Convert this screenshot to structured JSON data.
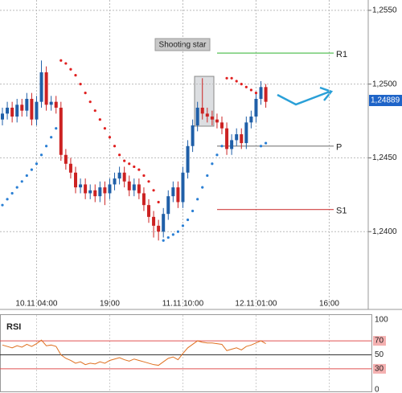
{
  "chart_data": [
    {
      "type": "candlestick",
      "categories": [
        null,
        null,
        null,
        null,
        null,
        null,
        null,
        "10.11 04:00",
        null,
        null,
        null,
        null,
        null,
        null,
        null,
        null,
        null,
        null,
        null,
        null,
        null,
        null,
        "19:00",
        null,
        null,
        null,
        null,
        null,
        null,
        null,
        null,
        null,
        null,
        null,
        null,
        null,
        null,
        "11.11 10:00",
        null,
        null,
        null,
        null,
        null,
        null,
        null,
        null,
        null,
        null,
        null,
        null,
        null,
        null,
        "12.11 01:00",
        null,
        null,
        null,
        null,
        null,
        null,
        null,
        null,
        null,
        null,
        null,
        null,
        null,
        null,
        "16:00",
        null,
        null,
        null,
        null,
        null,
        null,
        null,
        null
      ],
      "open": [
        1.2476,
        1.248,
        1.2484,
        1.2478,
        1.2486,
        1.2482,
        1.249,
        1.2476,
        1.2488,
        1.2508,
        1.2486,
        1.2488,
        1.2484,
        1.2452,
        1.2446,
        1.244,
        1.243,
        1.2432,
        1.2426,
        1.2428,
        1.2424,
        1.243,
        1.2426,
        1.2432,
        1.2436,
        1.244,
        1.2434,
        1.2428,
        1.2432,
        1.2426,
        1.2418,
        1.241,
        1.2404,
        1.24,
        1.2412,
        1.2424,
        1.243,
        1.242,
        1.244,
        1.2458,
        1.2472,
        1.2484,
        1.248,
        1.2478,
        1.2476,
        1.2474,
        1.247,
        1.2456,
        1.2462,
        1.2466,
        1.246,
        1.2474,
        1.2478,
        1.249,
        1.2498,
        null,
        null,
        null,
        null,
        null,
        null,
        null,
        null,
        null,
        null,
        null,
        null,
        null,
        null,
        null,
        null,
        null,
        null,
        null,
        null,
        null
      ],
      "high": [
        1.2484,
        1.2488,
        1.2488,
        1.249,
        1.249,
        1.2494,
        1.2494,
        1.2492,
        1.2516,
        1.2512,
        1.2492,
        1.2492,
        1.2488,
        1.2456,
        1.245,
        1.2444,
        1.2436,
        1.2436,
        1.2432,
        1.2432,
        1.2434,
        1.2434,
        1.2436,
        1.244,
        1.2444,
        1.2444,
        1.2438,
        1.2436,
        1.2436,
        1.243,
        1.2422,
        1.2414,
        1.2408,
        1.2416,
        1.2428,
        1.2434,
        1.2434,
        1.2444,
        1.2462,
        1.2476,
        1.2488,
        1.2504,
        1.2484,
        1.2482,
        1.248,
        1.2478,
        1.2474,
        1.2466,
        1.247,
        1.247,
        1.2478,
        1.2482,
        1.2494,
        1.2502,
        1.25,
        null,
        null,
        null,
        null,
        null,
        null,
        null,
        null,
        null,
        null,
        null,
        null,
        null,
        null,
        null,
        null,
        null,
        null,
        null,
        null,
        null
      ],
      "low": [
        1.2472,
        1.2476,
        1.2474,
        1.2474,
        1.2478,
        1.2478,
        1.2472,
        1.2472,
        1.2484,
        1.2482,
        1.2482,
        1.248,
        1.2448,
        1.2442,
        1.2436,
        1.2426,
        1.2426,
        1.2422,
        1.2422,
        1.242,
        1.242,
        1.2418,
        1.2422,
        1.2428,
        1.2432,
        1.243,
        1.2424,
        1.2424,
        1.2422,
        1.2414,
        1.2406,
        1.2396,
        1.2394,
        1.2396,
        1.2408,
        1.242,
        1.2416,
        1.2416,
        1.2436,
        1.2454,
        1.2468,
        1.2476,
        1.2474,
        1.2472,
        1.247,
        1.2466,
        1.2452,
        1.2452,
        1.2458,
        1.2456,
        1.2456,
        1.247,
        1.2474,
        1.2486,
        1.2484,
        null,
        null,
        null,
        null,
        null,
        null,
        null,
        null,
        null,
        null,
        null,
        null,
        null,
        null,
        null,
        null,
        null,
        null,
        null,
        null,
        null
      ],
      "close": [
        1.248,
        1.2484,
        1.2478,
        1.2486,
        1.2482,
        1.249,
        1.2476,
        1.2488,
        1.2508,
        1.2486,
        1.2488,
        1.2484,
        1.2452,
        1.2446,
        1.244,
        1.243,
        1.2432,
        1.2426,
        1.2428,
        1.2424,
        1.243,
        1.2426,
        1.2432,
        1.2436,
        1.244,
        1.2434,
        1.2428,
        1.2432,
        1.2426,
        1.2418,
        1.241,
        1.2404,
        1.24,
        1.2412,
        1.2424,
        1.243,
        1.242,
        1.244,
        1.2458,
        1.2472,
        1.2484,
        1.248,
        1.2478,
        1.2476,
        1.2474,
        1.247,
        1.2456,
        1.2462,
        1.2466,
        1.246,
        1.2474,
        1.2478,
        1.249,
        1.2498,
        1.2488,
        null,
        null,
        null,
        null,
        null,
        null,
        null,
        null,
        null,
        null,
        null,
        null,
        null,
        null,
        null,
        null,
        null,
        null,
        null,
        null,
        null
      ],
      "sar": [
        1.2418,
        1.2422,
        1.2426,
        1.243,
        1.2434,
        1.2438,
        1.2442,
        1.2446,
        1.2452,
        1.2458,
        1.2464,
        1.247,
        1.2516,
        1.2514,
        1.251,
        1.2506,
        1.25,
        1.2494,
        1.2488,
        1.2482,
        1.2476,
        1.247,
        1.2464,
        1.2458,
        1.2452,
        1.2448,
        1.2446,
        1.2444,
        1.2442,
        1.2438,
        1.2434,
        1.2428,
        1.242,
        1.2394,
        1.2396,
        1.2398,
        1.24,
        1.2404,
        1.2408,
        1.2414,
        1.2422,
        1.243,
        1.2438,
        1.2446,
        1.2452,
        1.2458,
        1.2504,
        1.2504,
        1.2502,
        1.25,
        1.2498,
        1.2496,
        1.2494,
        1.2458,
        1.246,
        null,
        null,
        null,
        null,
        null,
        null,
        null,
        null,
        null,
        null,
        null,
        null,
        null,
        null,
        null,
        null,
        null,
        null,
        null,
        null,
        null
      ],
      "up_color": "#1f5fa8",
      "down_color": "#cc2222",
      "sar_up_color": "#2a7fd4",
      "sar_down_color": "#e02020",
      "ylim": [
        1.235,
        1.2557
      ],
      "yticks": [
        {
          "value": 1.24,
          "label": "1,2400"
        },
        {
          "value": 1.245,
          "label": "1,2450"
        },
        {
          "value": 1.25,
          "label": "1,2500"
        },
        {
          "value": 1.255,
          "label": "1,2550"
        }
      ],
      "grid": true,
      "levels": [
        {
          "label": "R1",
          "value": 1.2521,
          "color": "#44bb44"
        },
        {
          "label": "P",
          "value": 1.2458,
          "color": "#888888"
        },
        {
          "label": "S1",
          "value": 1.2415,
          "color": "#d04040"
        }
      ],
      "annotation": {
        "text": "Shooting star"
      },
      "last_price": {
        "value": 1.24889,
        "label": "1,24889"
      }
    },
    {
      "type": "line",
      "title": "RSI",
      "color": "#e07020",
      "values": [
        64,
        62,
        60,
        63,
        61,
        65,
        62,
        66,
        71,
        63,
        64,
        62,
        50,
        45,
        42,
        38,
        40,
        36,
        38,
        37,
        40,
        38,
        42,
        44,
        46,
        43,
        41,
        44,
        42,
        40,
        38,
        36,
        35,
        40,
        45,
        47,
        43,
        52,
        60,
        65,
        70,
        68,
        67,
        67,
        66,
        65,
        56,
        58,
        60,
        57,
        62,
        64,
        67,
        70,
        66,
        null,
        null,
        null,
        null,
        null,
        null,
        null,
        null,
        null,
        null,
        null,
        null,
        null,
        null,
        null,
        null,
        null,
        null,
        null,
        null,
        null
      ],
      "ylim": [
        0,
        100
      ],
      "yticks": [
        0,
        30,
        50,
        70,
        100
      ]
    }
  ]
}
